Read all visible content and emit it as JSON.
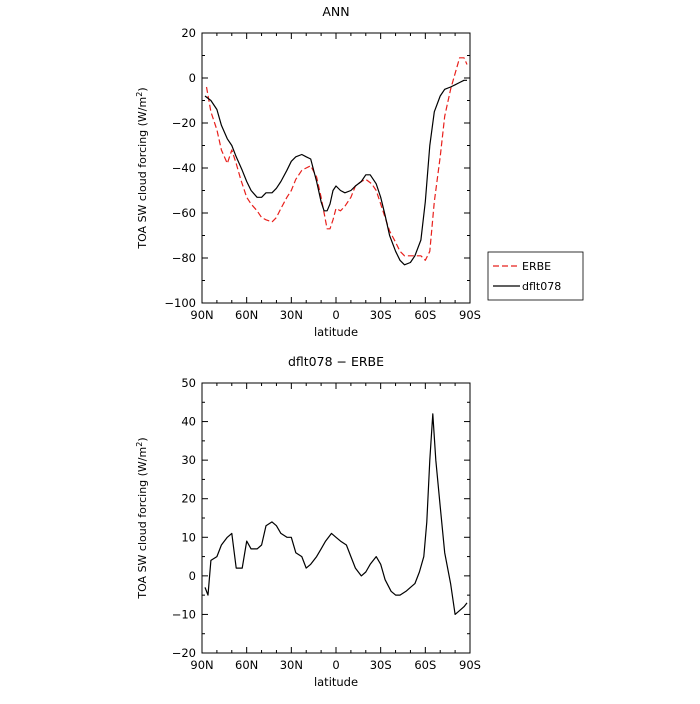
{
  "chart_data": [
    {
      "type": "line",
      "title": "ANN",
      "xlabel": "latitude",
      "ylabel": "TOA SW cloud forcing (W/m",
      "ylabel_sup": "2",
      "ylabel_close": ")",
      "xlim": [
        90,
        -90
      ],
      "ylim": [
        -100,
        20
      ],
      "x_ticks": [
        {
          "value": 90,
          "label": "90N"
        },
        {
          "value": 60,
          "label": "60N"
        },
        {
          "value": 30,
          "label": "30N"
        },
        {
          "value": 0,
          "label": "0"
        },
        {
          "value": -30,
          "label": "30S"
        },
        {
          "value": -60,
          "label": "60S"
        },
        {
          "value": -90,
          "label": "90S"
        }
      ],
      "y_ticks": [
        {
          "value": 20,
          "label": "20"
        },
        {
          "value": 0,
          "label": "0"
        },
        {
          "value": -20,
          "label": "−20"
        },
        {
          "value": -40,
          "label": "−40"
        },
        {
          "value": -60,
          "label": "−60"
        },
        {
          "value": -80,
          "label": "−80"
        },
        {
          "value": -100,
          "label": "−100"
        }
      ],
      "legend": {
        "placement": "right"
      },
      "series": [
        {
          "name": "ERBE",
          "color": "#e8201c",
          "dash": "dashed",
          "x": [
            87,
            84,
            80,
            77,
            73,
            70,
            67,
            64,
            60,
            57,
            53,
            50,
            47,
            43,
            40,
            37,
            33,
            30,
            27,
            23,
            20,
            17,
            13,
            10,
            8,
            6,
            4,
            2,
            0,
            -3,
            -6,
            -10,
            -13,
            -17,
            -20,
            -24,
            -27,
            -30,
            -33,
            -36,
            -40,
            -43,
            -46,
            -50,
            -53,
            -57,
            -60,
            -63,
            -66,
            -70,
            -73,
            -77,
            -80,
            -83,
            -86,
            -88
          ],
          "y": [
            -4,
            -15,
            -23,
            -32,
            -38,
            -32,
            -38,
            -45,
            -53,
            -56,
            -59,
            -62,
            -63,
            -64,
            -62,
            -58,
            -53,
            -50,
            -45,
            -41,
            -40,
            -39,
            -44,
            -53,
            -60,
            -67,
            -67,
            -63,
            -58,
            -59,
            -57,
            -53,
            -48,
            -46,
            -45,
            -47,
            -50,
            -56,
            -62,
            -68,
            -73,
            -77,
            -79,
            -79,
            -79,
            -79,
            -81,
            -77,
            -55,
            -35,
            -17,
            -5,
            2,
            9,
            9,
            6
          ]
        },
        {
          "name": "dflt078",
          "color": "#000000",
          "dash": "solid",
          "x": [
            88,
            84,
            80,
            77,
            73,
            70,
            67,
            63,
            60,
            57,
            53,
            50,
            47,
            43,
            40,
            37,
            33,
            30,
            27,
            23,
            20,
            17,
            13,
            10,
            8,
            6,
            4,
            2,
            0,
            -3,
            -6,
            -10,
            -13,
            -17,
            -20,
            -23,
            -27,
            -30,
            -33,
            -36,
            -40,
            -43,
            -46,
            -50,
            -53,
            -57,
            -60,
            -63,
            -66,
            -70,
            -73,
            -77,
            -80,
            -83,
            -86,
            -88
          ],
          "y": [
            -8,
            -10,
            -14,
            -21,
            -27,
            -30,
            -35,
            -41,
            -46,
            -50,
            -53,
            -53,
            -51,
            -51,
            -49,
            -46,
            -41,
            -37,
            -35,
            -34,
            -35,
            -36,
            -46,
            -55,
            -59,
            -59,
            -56,
            -50,
            -48,
            -50,
            -51,
            -50,
            -48,
            -46,
            -43,
            -43,
            -47,
            -53,
            -61,
            -70,
            -77,
            -81,
            -83,
            -82,
            -79,
            -72,
            -55,
            -30,
            -15,
            -8,
            -5,
            -4,
            -3,
            -2,
            -1,
            -1
          ]
        }
      ]
    },
    {
      "type": "line",
      "title": "dflt078 − ERBE",
      "xlabel": "latitude",
      "ylabel": "TOA SW cloud forcing (W/m",
      "ylabel_sup": "2",
      "ylabel_close": ")",
      "xlim": [
        90,
        -90
      ],
      "ylim": [
        -20,
        50
      ],
      "x_ticks": [
        {
          "value": 90,
          "label": "90N"
        },
        {
          "value": 60,
          "label": "60N"
        },
        {
          "value": 30,
          "label": "30N"
        },
        {
          "value": 0,
          "label": "0"
        },
        {
          "value": -30,
          "label": "30S"
        },
        {
          "value": -60,
          "label": "60S"
        },
        {
          "value": -90,
          "label": "90S"
        }
      ],
      "y_ticks": [
        {
          "value": 50,
          "label": "50"
        },
        {
          "value": 40,
          "label": "40"
        },
        {
          "value": 30,
          "label": "30"
        },
        {
          "value": 20,
          "label": "20"
        },
        {
          "value": 10,
          "label": "10"
        },
        {
          "value": 0,
          "label": "0"
        },
        {
          "value": -10,
          "label": "−10"
        },
        {
          "value": -20,
          "label": "−20"
        }
      ],
      "series": [
        {
          "color": "#000000",
          "dash": "solid",
          "x": [
            88,
            86,
            84,
            80,
            77,
            73,
            70,
            67,
            63,
            60,
            57,
            53,
            50,
            47,
            43,
            40,
            37,
            33,
            30,
            27,
            23,
            20,
            17,
            13,
            10,
            7,
            3,
            0,
            -3,
            -7,
            -10,
            -13,
            -17,
            -20,
            -23,
            -27,
            -30,
            -33,
            -37,
            -40,
            -43,
            -47,
            -50,
            -53,
            -56,
            -59,
            -61,
            -63,
            -65,
            -67,
            -70,
            -73,
            -77,
            -80,
            -83,
            -86,
            -88
          ],
          "y": [
            -3,
            -5,
            4,
            5,
            8,
            10,
            11,
            2,
            2,
            9,
            7,
            7,
            8,
            13,
            14,
            13,
            11,
            10,
            10,
            6,
            5,
            2,
            3,
            5,
            7,
            9,
            11,
            10,
            9,
            8,
            5,
            2,
            0,
            1,
            3,
            5,
            3,
            -1,
            -4,
            -5,
            -5,
            -4,
            -3,
            -2,
            1,
            5,
            14,
            30,
            42,
            30,
            18,
            6,
            -2,
            -10,
            -9,
            -8,
            -7
          ]
        }
      ]
    }
  ]
}
